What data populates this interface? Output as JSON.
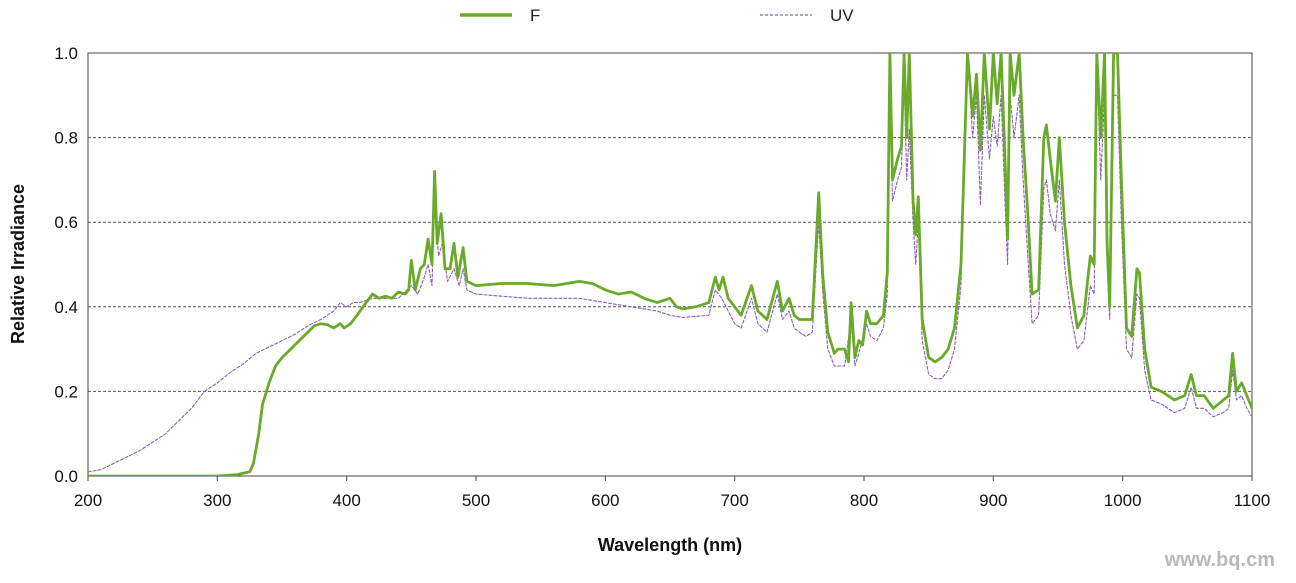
{
  "chart_data": {
    "type": "line",
    "xlabel": "Wavelength (nm)",
    "ylabel": "Relative Irradiance",
    "xlim": [
      200,
      1100
    ],
    "ylim": [
      0,
      1.0
    ],
    "x_ticks": [
      "200",
      "300",
      "400",
      "500",
      "600",
      "700",
      "800",
      "900",
      "1000",
      "1100"
    ],
    "y_ticks": [
      "0.0",
      "0.2",
      "0.4",
      "0.6",
      "0.8",
      "1.0"
    ],
    "grid": "horizontal-dashed",
    "legend_position": "top",
    "series": [
      {
        "name": "F",
        "color": "#6aaa2a",
        "style": "solid",
        "points": [
          [
            200,
            0.0
          ],
          [
            250,
            0.0
          ],
          [
            300,
            0.0
          ],
          [
            315,
            0.003
          ],
          [
            325,
            0.01
          ],
          [
            328,
            0.03
          ],
          [
            332,
            0.1
          ],
          [
            335,
            0.17
          ],
          [
            340,
            0.22
          ],
          [
            345,
            0.26
          ],
          [
            350,
            0.28
          ],
          [
            355,
            0.295
          ],
          [
            360,
            0.31
          ],
          [
            365,
            0.325
          ],
          [
            370,
            0.34
          ],
          [
            375,
            0.355
          ],
          [
            380,
            0.36
          ],
          [
            385,
            0.358
          ],
          [
            390,
            0.35
          ],
          [
            395,
            0.36
          ],
          [
            398,
            0.35
          ],
          [
            403,
            0.36
          ],
          [
            408,
            0.38
          ],
          [
            415,
            0.41
          ],
          [
            420,
            0.43
          ],
          [
            425,
            0.42
          ],
          [
            430,
            0.425
          ],
          [
            435,
            0.42
          ],
          [
            440,
            0.435
          ],
          [
            445,
            0.43
          ],
          [
            448,
            0.44
          ],
          [
            450,
            0.51
          ],
          [
            453,
            0.44
          ],
          [
            457,
            0.49
          ],
          [
            460,
            0.5
          ],
          [
            463,
            0.56
          ],
          [
            466,
            0.5
          ],
          [
            468,
            0.72
          ],
          [
            470,
            0.55
          ],
          [
            473,
            0.62
          ],
          [
            476,
            0.49
          ],
          [
            480,
            0.49
          ],
          [
            483,
            0.55
          ],
          [
            486,
            0.47
          ],
          [
            490,
            0.54
          ],
          [
            493,
            0.46
          ],
          [
            500,
            0.45
          ],
          [
            520,
            0.455
          ],
          [
            540,
            0.455
          ],
          [
            560,
            0.45
          ],
          [
            580,
            0.46
          ],
          [
            590,
            0.455
          ],
          [
            600,
            0.44
          ],
          [
            610,
            0.43
          ],
          [
            620,
            0.435
          ],
          [
            630,
            0.42
          ],
          [
            640,
            0.41
          ],
          [
            650,
            0.42
          ],
          [
            655,
            0.4
          ],
          [
            660,
            0.395
          ],
          [
            670,
            0.4
          ],
          [
            680,
            0.41
          ],
          [
            685,
            0.47
          ],
          [
            688,
            0.44
          ],
          [
            691,
            0.47
          ],
          [
            695,
            0.42
          ],
          [
            700,
            0.4
          ],
          [
            705,
            0.38
          ],
          [
            713,
            0.45
          ],
          [
            718,
            0.39
          ],
          [
            725,
            0.37
          ],
          [
            733,
            0.46
          ],
          [
            737,
            0.39
          ],
          [
            742,
            0.42
          ],
          [
            746,
            0.38
          ],
          [
            750,
            0.37
          ],
          [
            755,
            0.37
          ],
          [
            760,
            0.37
          ],
          [
            765,
            0.67
          ],
          [
            768,
            0.48
          ],
          [
            772,
            0.34
          ],
          [
            777,
            0.29
          ],
          [
            780,
            0.3
          ],
          [
            785,
            0.3
          ],
          [
            788,
            0.27
          ],
          [
            790,
            0.41
          ],
          [
            793,
            0.28
          ],
          [
            796,
            0.32
          ],
          [
            799,
            0.31
          ],
          [
            802,
            0.39
          ],
          [
            805,
            0.36
          ],
          [
            810,
            0.36
          ],
          [
            815,
            0.38
          ],
          [
            818,
            0.48
          ],
          [
            820,
            1.0
          ],
          [
            822,
            0.7
          ],
          [
            826,
            0.75
          ],
          [
            829,
            0.78
          ],
          [
            831,
            1.0
          ],
          [
            833,
            0.8
          ],
          [
            835,
            1.0
          ],
          [
            838,
            0.65
          ],
          [
            840,
            0.57
          ],
          [
            842,
            0.66
          ],
          [
            845,
            0.37
          ],
          [
            850,
            0.28
          ],
          [
            855,
            0.27
          ],
          [
            860,
            0.28
          ],
          [
            865,
            0.3
          ],
          [
            870,
            0.35
          ],
          [
            875,
            0.5
          ],
          [
            880,
            1.0
          ],
          [
            884,
            0.85
          ],
          [
            887,
            0.95
          ],
          [
            890,
            0.77
          ],
          [
            893,
            1.0
          ],
          [
            897,
            0.82
          ],
          [
            900,
            1.0
          ],
          [
            903,
            0.88
          ],
          [
            906,
            1.0
          ],
          [
            909,
            0.75
          ],
          [
            911,
            0.56
          ],
          [
            913,
            1.0
          ],
          [
            916,
            0.9
          ],
          [
            920,
            1.0
          ],
          [
            923,
            0.8
          ],
          [
            927,
            0.6
          ],
          [
            930,
            0.43
          ],
          [
            935,
            0.44
          ],
          [
            939,
            0.8
          ],
          [
            941,
            0.83
          ],
          [
            944,
            0.75
          ],
          [
            948,
            0.65
          ],
          [
            951,
            0.8
          ],
          [
            955,
            0.6
          ],
          [
            960,
            0.45
          ],
          [
            965,
            0.35
          ],
          [
            970,
            0.38
          ],
          [
            975,
            0.52
          ],
          [
            978,
            0.5
          ],
          [
            980,
            1.0
          ],
          [
            983,
            0.8
          ],
          [
            986,
            1.0
          ],
          [
            988,
            0.55
          ],
          [
            990,
            0.4
          ],
          [
            993,
            1.0
          ],
          [
            996,
            1.0
          ],
          [
            999,
            0.7
          ],
          [
            1003,
            0.35
          ],
          [
            1007,
            0.33
          ],
          [
            1011,
            0.49
          ],
          [
            1013,
            0.48
          ],
          [
            1017,
            0.3
          ],
          [
            1022,
            0.21
          ],
          [
            1030,
            0.2
          ],
          [
            1040,
            0.18
          ],
          [
            1048,
            0.19
          ],
          [
            1053,
            0.24
          ],
          [
            1057,
            0.19
          ],
          [
            1063,
            0.19
          ],
          [
            1070,
            0.16
          ],
          [
            1078,
            0.18
          ],
          [
            1082,
            0.19
          ],
          [
            1085,
            0.29
          ],
          [
            1088,
            0.2
          ],
          [
            1092,
            0.22
          ],
          [
            1096,
            0.19
          ],
          [
            1100,
            0.16
          ]
        ]
      },
      {
        "name": "UV",
        "color": "#8a5fb6",
        "style": "dashed",
        "points": [
          [
            200,
            0.01
          ],
          [
            210,
            0.015
          ],
          [
            220,
            0.03
          ],
          [
            230,
            0.045
          ],
          [
            240,
            0.06
          ],
          [
            250,
            0.08
          ],
          [
            260,
            0.1
          ],
          [
            270,
            0.13
          ],
          [
            280,
            0.16
          ],
          [
            290,
            0.2
          ],
          [
            300,
            0.22
          ],
          [
            310,
            0.245
          ],
          [
            320,
            0.265
          ],
          [
            330,
            0.29
          ],
          [
            340,
            0.305
          ],
          [
            350,
            0.32
          ],
          [
            360,
            0.335
          ],
          [
            370,
            0.355
          ],
          [
            380,
            0.37
          ],
          [
            390,
            0.39
          ],
          [
            395,
            0.41
          ],
          [
            400,
            0.4
          ],
          [
            405,
            0.41
          ],
          [
            410,
            0.41
          ],
          [
            420,
            0.42
          ],
          [
            430,
            0.42
          ],
          [
            440,
            0.42
          ],
          [
            450,
            0.45
          ],
          [
            455,
            0.43
          ],
          [
            460,
            0.47
          ],
          [
            463,
            0.5
          ],
          [
            466,
            0.45
          ],
          [
            468,
            0.66
          ],
          [
            471,
            0.52
          ],
          [
            474,
            0.55
          ],
          [
            478,
            0.46
          ],
          [
            483,
            0.49
          ],
          [
            487,
            0.45
          ],
          [
            490,
            0.49
          ],
          [
            493,
            0.44
          ],
          [
            500,
            0.43
          ],
          [
            520,
            0.425
          ],
          [
            540,
            0.42
          ],
          [
            560,
            0.42
          ],
          [
            580,
            0.42
          ],
          [
            600,
            0.41
          ],
          [
            620,
            0.4
          ],
          [
            640,
            0.39
          ],
          [
            650,
            0.38
          ],
          [
            660,
            0.375
          ],
          [
            680,
            0.38
          ],
          [
            685,
            0.44
          ],
          [
            690,
            0.42
          ],
          [
            695,
            0.39
          ],
          [
            700,
            0.36
          ],
          [
            705,
            0.35
          ],
          [
            713,
            0.42
          ],
          [
            718,
            0.36
          ],
          [
            725,
            0.34
          ],
          [
            733,
            0.43
          ],
          [
            737,
            0.37
          ],
          [
            742,
            0.39
          ],
          [
            746,
            0.35
          ],
          [
            750,
            0.34
          ],
          [
            755,
            0.33
          ],
          [
            760,
            0.34
          ],
          [
            765,
            0.6
          ],
          [
            768,
            0.44
          ],
          [
            772,
            0.3
          ],
          [
            777,
            0.26
          ],
          [
            785,
            0.26
          ],
          [
            790,
            0.37
          ],
          [
            793,
            0.26
          ],
          [
            796,
            0.29
          ],
          [
            802,
            0.36
          ],
          [
            805,
            0.33
          ],
          [
            810,
            0.32
          ],
          [
            815,
            0.35
          ],
          [
            818,
            0.43
          ],
          [
            820,
            1.0
          ],
          [
            822,
            0.65
          ],
          [
            826,
            0.7
          ],
          [
            829,
            0.73
          ],
          [
            831,
            0.95
          ],
          [
            833,
            0.7
          ],
          [
            835,
            0.82
          ],
          [
            838,
            0.6
          ],
          [
            840,
            0.5
          ],
          [
            842,
            0.6
          ],
          [
            845,
            0.32
          ],
          [
            850,
            0.24
          ],
          [
            855,
            0.23
          ],
          [
            860,
            0.23
          ],
          [
            865,
            0.25
          ],
          [
            870,
            0.3
          ],
          [
            875,
            0.45
          ],
          [
            880,
            1.0
          ],
          [
            884,
            0.8
          ],
          [
            887,
            0.9
          ],
          [
            890,
            0.64
          ],
          [
            893,
            0.9
          ],
          [
            897,
            0.75
          ],
          [
            900,
            0.85
          ],
          [
            903,
            0.78
          ],
          [
            906,
            0.9
          ],
          [
            909,
            0.65
          ],
          [
            911,
            0.5
          ],
          [
            913,
            0.9
          ],
          [
            916,
            0.8
          ],
          [
            920,
            0.9
          ],
          [
            923,
            0.7
          ],
          [
            927,
            0.5
          ],
          [
            930,
            0.36
          ],
          [
            935,
            0.38
          ],
          [
            939,
            0.68
          ],
          [
            941,
            0.7
          ],
          [
            944,
            0.62
          ],
          [
            948,
            0.58
          ],
          [
            951,
            0.7
          ],
          [
            955,
            0.5
          ],
          [
            960,
            0.38
          ],
          [
            965,
            0.3
          ],
          [
            970,
            0.32
          ],
          [
            975,
            0.45
          ],
          [
            978,
            0.43
          ],
          [
            980,
            1.0
          ],
          [
            983,
            0.7
          ],
          [
            986,
            0.9
          ],
          [
            988,
            0.5
          ],
          [
            990,
            0.37
          ],
          [
            993,
            0.9
          ],
          [
            996,
            0.9
          ],
          [
            999,
            0.6
          ],
          [
            1003,
            0.3
          ],
          [
            1007,
            0.28
          ],
          [
            1011,
            0.43
          ],
          [
            1013,
            0.42
          ],
          [
            1017,
            0.25
          ],
          [
            1022,
            0.18
          ],
          [
            1030,
            0.17
          ],
          [
            1040,
            0.15
          ],
          [
            1048,
            0.16
          ],
          [
            1053,
            0.21
          ],
          [
            1057,
            0.16
          ],
          [
            1063,
            0.16
          ],
          [
            1070,
            0.14
          ],
          [
            1078,
            0.15
          ],
          [
            1082,
            0.16
          ],
          [
            1085,
            0.25
          ],
          [
            1088,
            0.18
          ],
          [
            1092,
            0.19
          ],
          [
            1096,
            0.16
          ],
          [
            1100,
            0.14
          ]
        ]
      }
    ]
  },
  "watermark": "www.bq.cm"
}
